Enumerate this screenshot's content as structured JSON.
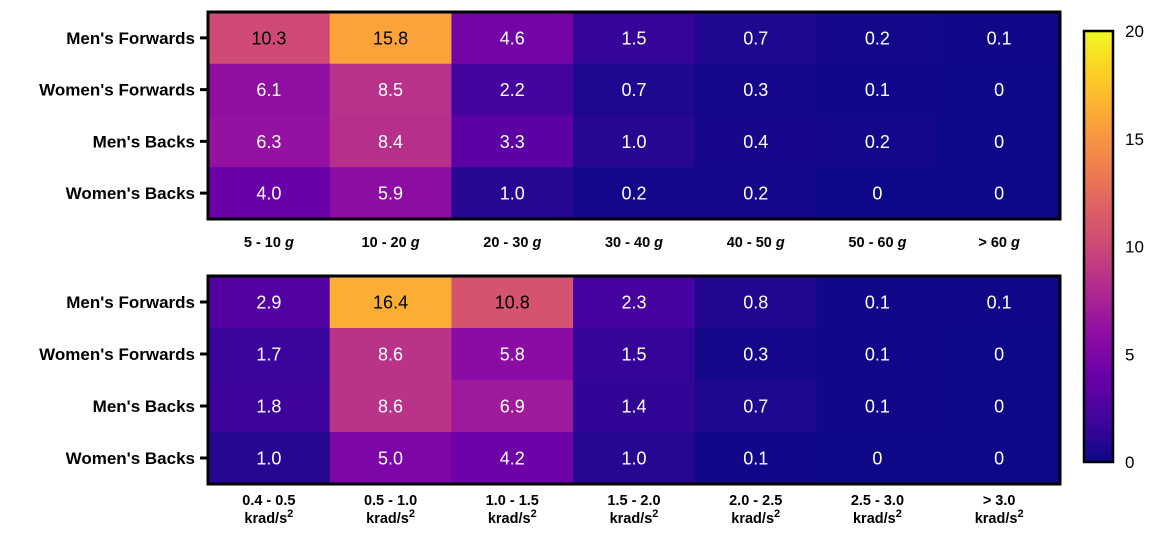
{
  "chart_data": [
    {
      "type": "heatmap",
      "rows": [
        "Men's Forwards",
        "Women's Forwards",
        "Men's Backs",
        "Women's Backs"
      ],
      "columns": [
        {
          "label": "5 - 10",
          "unit": "g"
        },
        {
          "label": "10 - 20",
          "unit": "g"
        },
        {
          "label": "20 - 30",
          "unit": "g"
        },
        {
          "label": "30 - 40",
          "unit": "g"
        },
        {
          "label": "40 - 50",
          "unit": "g"
        },
        {
          "label": "50 - 60",
          "unit": "g"
        },
        {
          "label": "> 60",
          "unit": "g"
        }
      ],
      "values": [
        [
          10.3,
          15.8,
          4.6,
          1.5,
          0.7,
          0.2,
          0.1
        ],
        [
          6.1,
          8.5,
          2.2,
          0.7,
          0.3,
          0.1,
          0
        ],
        [
          6.3,
          8.4,
          3.3,
          1.0,
          0.4,
          0.2,
          0
        ],
        [
          4.0,
          5.9,
          1.0,
          0.2,
          0.2,
          0,
          0
        ]
      ],
      "value_labels": [
        [
          "10.3",
          "15.8",
          "4.6",
          "1.5",
          "0.7",
          "0.2",
          "0.1"
        ],
        [
          "6.1",
          "8.5",
          "2.2",
          "0.7",
          "0.3",
          "0.1",
          "0"
        ],
        [
          "6.3",
          "8.4",
          "3.3",
          "1.0",
          "0.4",
          "0.2",
          "0"
        ],
        [
          "4.0",
          "5.9",
          "1.0",
          "0.2",
          "0.2",
          "0",
          "0"
        ]
      ]
    },
    {
      "type": "heatmap",
      "rows": [
        "Men's Forwards",
        "Women's Forwards",
        "Men's Backs",
        "Women's Backs"
      ],
      "columns": [
        {
          "label": "0.4 - 0.5",
          "unit": "krad/s",
          "unit_sup": "2"
        },
        {
          "label": "0.5 - 1.0",
          "unit": "krad/s",
          "unit_sup": "2"
        },
        {
          "label": "1.0 - 1.5",
          "unit": "krad/s",
          "unit_sup": "2"
        },
        {
          "label": "1.5 - 2.0",
          "unit": "krad/s",
          "unit_sup": "2"
        },
        {
          "label": "2.0 - 2.5",
          "unit": "krad/s",
          "unit_sup": "2"
        },
        {
          "label": "2.5 - 3.0",
          "unit": "krad/s",
          "unit_sup": "2"
        },
        {
          "label": "> 3.0",
          "unit": "krad/s",
          "unit_sup": "2"
        }
      ],
      "values": [
        [
          2.9,
          16.4,
          10.8,
          2.3,
          0.8,
          0.1,
          0.1
        ],
        [
          1.7,
          8.6,
          5.8,
          1.5,
          0.3,
          0.1,
          0
        ],
        [
          1.8,
          8.6,
          6.9,
          1.4,
          0.7,
          0.1,
          0
        ],
        [
          1.0,
          5.0,
          4.2,
          1.0,
          0.1,
          0,
          0
        ]
      ],
      "value_labels": [
        [
          "2.9",
          "16.4",
          "10.8",
          "2.3",
          "0.8",
          "0.1",
          "0.1"
        ],
        [
          "1.7",
          "8.6",
          "5.8",
          "1.5",
          "0.3",
          "0.1",
          "0"
        ],
        [
          "1.8",
          "8.6",
          "6.9",
          "1.4",
          "0.7",
          "0.1",
          "0"
        ],
        [
          "1.0",
          "5.0",
          "4.2",
          "1.0",
          "0.1",
          "0",
          "0"
        ]
      ]
    }
  ],
  "colorbar": {
    "min": 0,
    "max": 20,
    "ticks": [
      "0",
      "5",
      "10",
      "15",
      "20"
    ],
    "colormap": "plasma",
    "colormap_stops": [
      "#0d0887",
      "#41049d",
      "#6a00a8",
      "#8f0da4",
      "#b12a90",
      "#cc4778",
      "#e16462",
      "#f2844b",
      "#fca636",
      "#fcce25",
      "#f0f921"
    ],
    "text_dark_threshold": 9.5
  }
}
